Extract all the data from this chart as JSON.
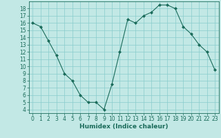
{
  "x": [
    0,
    1,
    2,
    3,
    4,
    5,
    6,
    7,
    8,
    9,
    10,
    11,
    12,
    13,
    14,
    15,
    16,
    17,
    18,
    19,
    20,
    21,
    22,
    23
  ],
  "y": [
    16,
    15.5,
    13.5,
    11.5,
    9,
    8,
    6,
    5,
    5,
    4,
    7.5,
    12,
    16.5,
    16,
    17,
    17.5,
    18.5,
    18.5,
    18,
    15.5,
    14.5,
    13,
    12,
    9.5
  ],
  "line_color": "#1a6b5a",
  "marker": "D",
  "marker_size": 2,
  "bg_color": "#c2e8e5",
  "grid_color": "#88cccc",
  "xlabel": "Humidex (Indice chaleur)",
  "xlim": [
    -0.5,
    23.5
  ],
  "ylim": [
    3.5,
    19
  ],
  "yticks": [
    4,
    5,
    6,
    7,
    8,
    9,
    10,
    11,
    12,
    13,
    14,
    15,
    16,
    17,
    18
  ],
  "xticks": [
    0,
    1,
    2,
    3,
    4,
    5,
    6,
    7,
    8,
    9,
    10,
    11,
    12,
    13,
    14,
    15,
    16,
    17,
    18,
    19,
    20,
    21,
    22,
    23
  ],
  "tick_fontsize": 5.5,
  "xlabel_fontsize": 6.5
}
